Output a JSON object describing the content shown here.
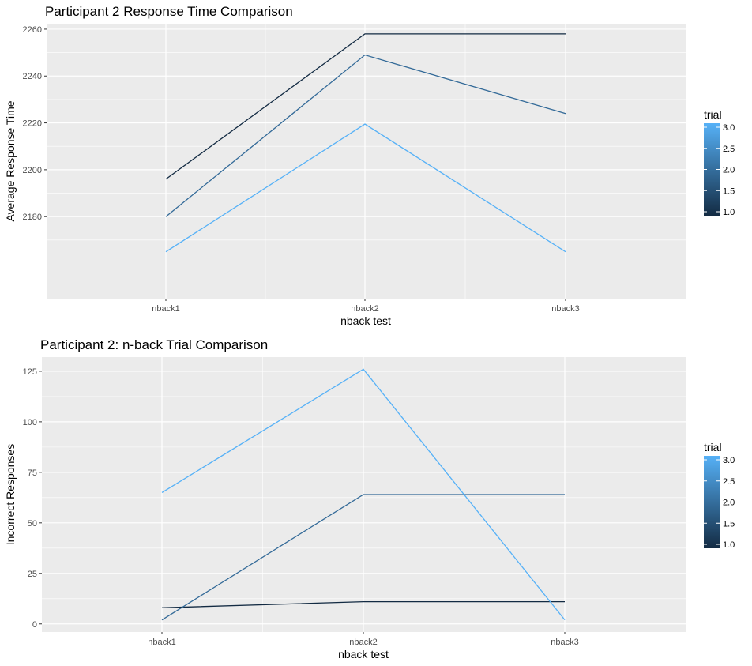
{
  "chart_data": [
    {
      "type": "line",
      "title": "Participant 2 Response Time Comparison",
      "xlabel": "nback test",
      "ylabel": "Average Response Time",
      "categories": [
        "nback1",
        "nback2",
        "nback3"
      ],
      "ylim": [
        2145,
        2262
      ],
      "yticks": [
        2180,
        2200,
        2220,
        2240,
        2260
      ],
      "grid": true,
      "legend": {
        "title": "trial",
        "placement": "right",
        "ticks": [
          "3.0",
          "2.5",
          "2.0",
          "1.5",
          "1.0"
        ],
        "color_low": "#132B43",
        "color_high": "#56B1F7"
      },
      "series": [
        {
          "trial": 1,
          "values": [
            2196,
            2258,
            2258
          ],
          "color": "#132B43"
        },
        {
          "trial": 2,
          "values": [
            2180,
            2249,
            2224
          ],
          "color": "#336A98"
        },
        {
          "trial": 3,
          "values": [
            2165,
            2219.5,
            2165
          ],
          "color": "#56B1F7"
        }
      ]
    },
    {
      "type": "line",
      "title": "Participant 2: n-back Trial Comparison",
      "xlabel": "nback test",
      "ylabel": "Incorrect Responses",
      "categories": [
        "nback1",
        "nback2",
        "nback3"
      ],
      "ylim": [
        -4,
        132
      ],
      "yticks": [
        0,
        25,
        50,
        75,
        100,
        125
      ],
      "grid": true,
      "legend": {
        "title": "trial",
        "placement": "right",
        "ticks": [
          "3.0",
          "2.5",
          "2.0",
          "1.5",
          "1.0"
        ],
        "color_low": "#132B43",
        "color_high": "#56B1F7"
      },
      "series": [
        {
          "trial": 1,
          "values": [
            8,
            11,
            11
          ],
          "color": "#132B43"
        },
        {
          "trial": 2,
          "values": [
            2,
            64,
            64
          ],
          "color": "#336A98"
        },
        {
          "trial": 3,
          "values": [
            65,
            126,
            2
          ],
          "color": "#56B1F7"
        }
      ]
    }
  ]
}
